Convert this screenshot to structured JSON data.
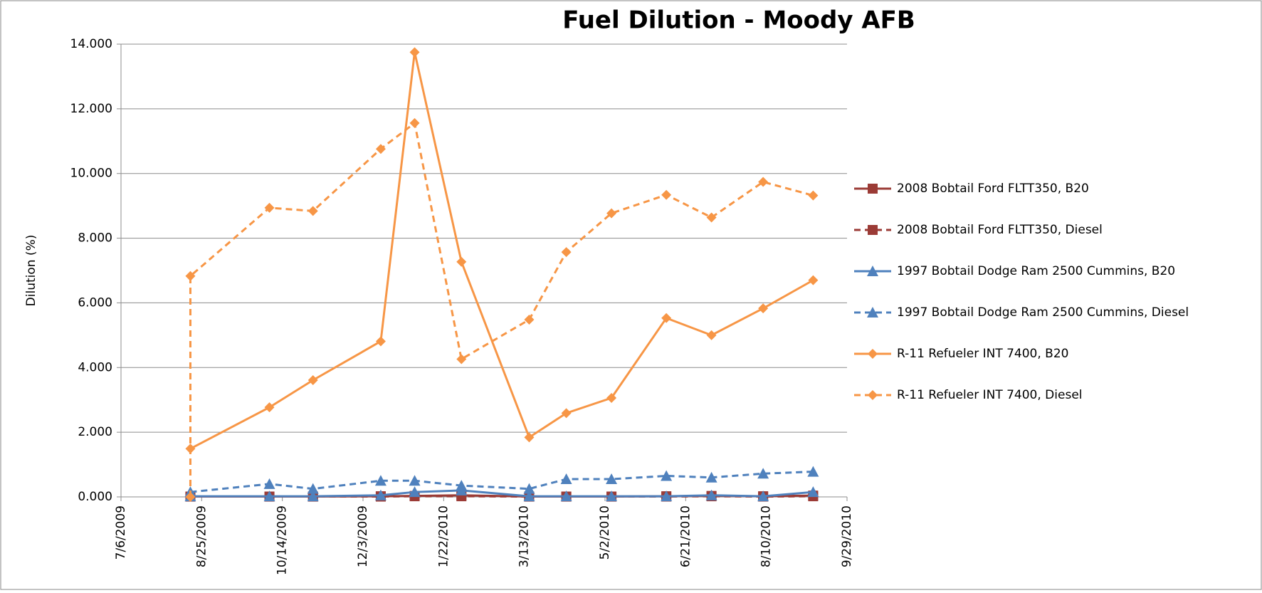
{
  "chart_data": {
    "type": "line",
    "title": "Fuel Dilution - Moody AFB",
    "y_label": "Dilution (%)",
    "xlim": [
      "7/6/2009",
      "9/29/2010"
    ],
    "xticks": [
      "7/6/2009",
      "8/25/2009",
      "10/14/2009",
      "12/3/2009",
      "1/22/2010",
      "3/13/2010",
      "5/2/2010",
      "6/21/2010",
      "8/10/2010",
      "9/29/2010"
    ],
    "ylim": [
      0,
      14
    ],
    "yticks": [
      {
        "value": 0,
        "label": "0.000"
      },
      {
        "value": 2,
        "label": "2.000"
      },
      {
        "value": 4,
        "label": "4.000"
      },
      {
        "value": 6,
        "label": "6.000"
      },
      {
        "value": 8,
        "label": "8.000"
      },
      {
        "value": 10,
        "label": "10.000"
      },
      {
        "value": 12,
        "label": "12.000"
      },
      {
        "value": 14,
        "label": "14.000"
      }
    ],
    "grid": true,
    "legend": "right",
    "series": [
      {
        "name": "2008 Bobtail Ford FLTT350, B20",
        "color": "#9b3b36",
        "dash": false,
        "marker": "square",
        "x": [
          "8/18/2009",
          "10/6/2009",
          "11/2/2009",
          "12/14/2009",
          "1/4/2010",
          "2/2/2010",
          "3/16/2010",
          "4/8/2010",
          "5/6/2010",
          "6/9/2010",
          "7/7/2010",
          "8/8/2010",
          "9/8/2010"
        ],
        "values": [
          0.01,
          0.01,
          0.01,
          0.02,
          0.03,
          0.05,
          0.01,
          0.01,
          0.01,
          0.02,
          0.03,
          0.02,
          0.04
        ]
      },
      {
        "name": "2008 Bobtail Ford FLTT350, Diesel",
        "color": "#9b3b36",
        "dash": true,
        "marker": "square",
        "x": [
          "8/18/2009",
          "10/6/2009",
          "11/2/2009",
          "12/14/2009",
          "1/4/2010",
          "2/2/2010",
          "3/16/2010",
          "4/8/2010",
          "5/6/2010",
          "6/9/2010",
          "7/7/2010",
          "8/8/2010",
          "9/8/2010"
        ],
        "values": [
          0.01,
          0.01,
          0.01,
          0.01,
          0.02,
          0.02,
          0.01,
          0.01,
          0.01,
          0.01,
          0.02,
          0.01,
          0.02
        ]
      },
      {
        "name": "1997 Bobtail Dodge Ram 2500 Cummins, B20",
        "color": "#4f81bd",
        "dash": false,
        "marker": "triangle",
        "x": [
          "8/18/2009",
          "10/6/2009",
          "11/2/2009",
          "12/14/2009",
          "1/4/2010",
          "2/2/2010",
          "3/16/2010",
          "4/8/2010",
          "5/6/2010",
          "6/9/2010",
          "7/7/2010",
          "8/8/2010",
          "9/8/2010"
        ],
        "values": [
          0.02,
          0.02,
          0.02,
          0.05,
          0.15,
          0.2,
          0.02,
          0.02,
          0.02,
          0.02,
          0.05,
          0.02,
          0.15
        ]
      },
      {
        "name": "1997 Bobtail Dodge Ram 2500 Cummins, Diesel",
        "color": "#4f81bd",
        "dash": true,
        "marker": "triangle",
        "x": [
          "8/18/2009",
          "10/6/2009",
          "11/2/2009",
          "12/14/2009",
          "1/4/2010",
          "2/2/2010",
          "3/16/2010",
          "4/8/2010",
          "5/6/2010",
          "6/9/2010",
          "7/7/2010",
          "8/8/2010",
          "9/8/2010"
        ],
        "values": [
          0.15,
          0.4,
          0.25,
          0.5,
          0.5,
          0.35,
          0.25,
          0.55,
          0.55,
          0.65,
          0.6,
          0.72,
          0.78
        ]
      },
      {
        "name": "R-11 Refueler INT 7400, B20",
        "color": "#f79646",
        "dash": false,
        "marker": "diamond",
        "x": [
          "8/18/2009",
          "10/6/2009",
          "11/2/2009",
          "12/14/2009",
          "1/4/2010",
          "2/2/2010",
          "3/16/2010",
          "4/8/2010",
          "5/6/2010",
          "6/9/2010",
          "7/7/2010",
          "8/8/2010",
          "9/8/2010"
        ],
        "values": [
          1.49,
          2.77,
          3.61,
          4.81,
          13.75,
          7.27,
          1.84,
          2.59,
          3.06,
          5.53,
          5.0,
          5.83,
          6.7
        ]
      },
      {
        "name": "R-11 Refueler INT 7400, Diesel",
        "color": "#f79646",
        "dash": true,
        "marker": "diamond",
        "x": [
          "8/18/2009",
          "8/18/2009",
          "10/6/2009",
          "11/2/2009",
          "12/14/2009",
          "1/4/2010",
          "2/2/2010",
          "3/16/2010",
          "4/8/2010",
          "5/6/2010",
          "6/9/2010",
          "7/7/2010",
          "8/8/2010",
          "9/8/2010"
        ],
        "values": [
          0,
          6.83,
          8.94,
          8.84,
          10.76,
          11.56,
          4.26,
          5.48,
          7.57,
          8.77,
          9.34,
          8.64,
          9.74,
          9.32
        ]
      }
    ]
  }
}
